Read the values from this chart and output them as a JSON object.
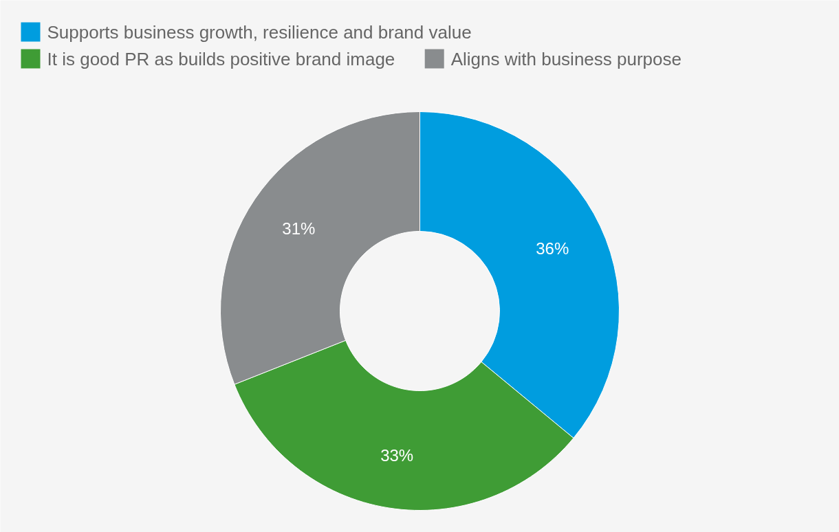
{
  "chart_data": {
    "type": "donut",
    "categories": [
      "Supports business growth, resilience and brand value",
      "It is good PR as builds positive brand image",
      "Aligns with business purpose"
    ],
    "values": [
      36,
      33,
      31
    ],
    "colors": [
      "#009ddf",
      "#3f9c35",
      "#898c8e"
    ],
    "value_labels": [
      "36%",
      "33%",
      "31%"
    ],
    "legend": "top left"
  }
}
